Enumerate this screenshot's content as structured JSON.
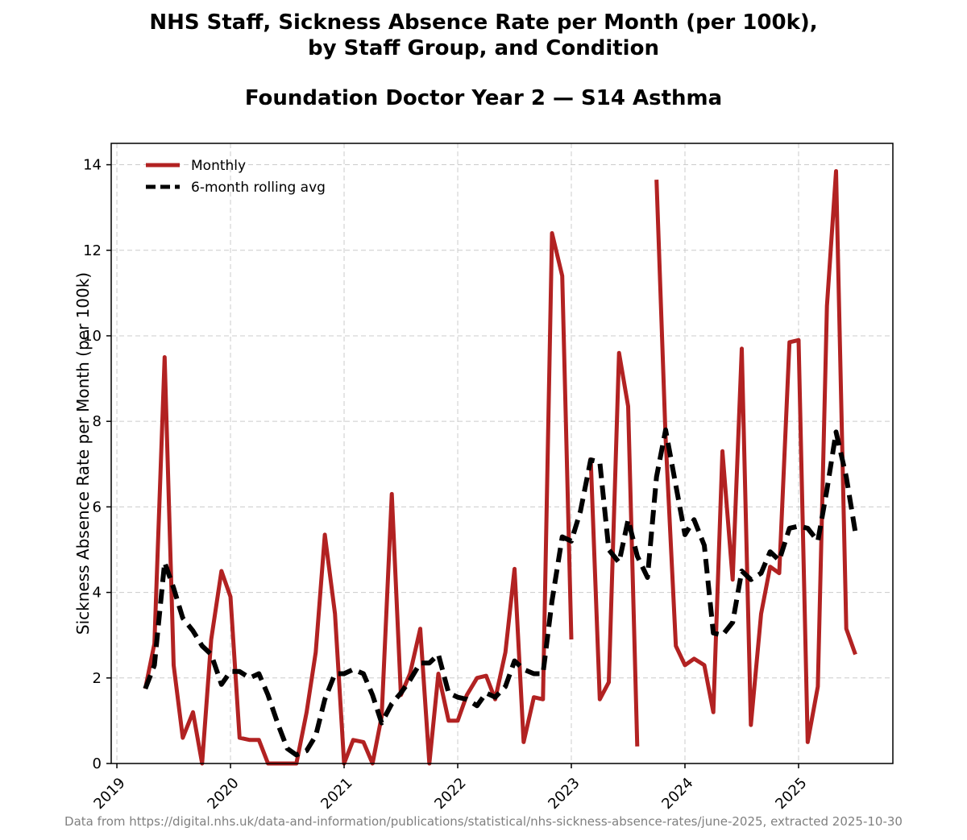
{
  "chart_data": {
    "type": "line",
    "title_line1": "NHS Staff, Sickness Absence Rate per Month (per 100k),",
    "title_line2": "by Staff Group, and Condition",
    "subtitle": "Foundation Doctor Year 2 — S14 Asthma",
    "xlabel": "",
    "ylabel": "Sickness Absence Rate per Month (per 100k)",
    "xlim": [
      2018.95,
      2025.83
    ],
    "ylim": [
      0,
      14.5
    ],
    "x_ticks": [
      2019,
      2020,
      2021,
      2022,
      2023,
      2024,
      2025
    ],
    "x_tick_labels": [
      "2019",
      "2020",
      "2021",
      "2022",
      "2023",
      "2024",
      "2025"
    ],
    "y_ticks": [
      0,
      2,
      4,
      6,
      8,
      10,
      12,
      14
    ],
    "y_tick_labels": [
      "0",
      "2",
      "4",
      "6",
      "8",
      "10",
      "12",
      "14"
    ],
    "grid": true,
    "legend_position": "top-left",
    "series": [
      {
        "name": "Monthly",
        "color": "#b22222",
        "style": "solid",
        "points": [
          [
            2019.25,
            1.75
          ],
          [
            2019.33,
            2.8
          ],
          [
            2019.42,
            9.5
          ],
          [
            2019.5,
            2.3
          ],
          [
            2019.58,
            0.6
          ],
          [
            2019.67,
            1.2
          ],
          [
            2019.75,
            0.0
          ],
          [
            2019.83,
            2.9
          ],
          [
            2019.92,
            4.5
          ],
          [
            2020.0,
            3.9
          ],
          [
            2020.08,
            0.6
          ],
          [
            2020.17,
            0.55
          ],
          [
            2020.25,
            0.55
          ],
          [
            2020.33,
            0.0
          ],
          [
            2020.42,
            0.0
          ],
          [
            2020.5,
            0.0
          ],
          [
            2020.58,
            0.0
          ],
          [
            2020.67,
            1.2
          ],
          [
            2020.75,
            2.6
          ],
          [
            2020.83,
            5.35
          ],
          [
            2020.92,
            3.5
          ],
          [
            2021.0,
            0.0
          ],
          [
            2021.08,
            0.55
          ],
          [
            2021.17,
            0.5
          ],
          [
            2021.25,
            0.0
          ],
          [
            2021.33,
            1.1
          ],
          [
            2021.42,
            6.3
          ],
          [
            2021.5,
            1.6
          ],
          [
            2021.58,
            2.1
          ],
          [
            2021.67,
            3.15
          ],
          [
            2021.75,
            0.0
          ],
          [
            2021.83,
            2.1
          ],
          [
            2021.92,
            1.0
          ],
          [
            2022.0,
            1.0
          ],
          [
            2022.08,
            1.6
          ],
          [
            2022.17,
            2.0
          ],
          [
            2022.25,
            2.05
          ],
          [
            2022.33,
            1.5
          ],
          [
            2022.42,
            2.6
          ],
          [
            2022.5,
            4.55
          ],
          [
            2022.58,
            0.5
          ],
          [
            2022.67,
            1.55
          ],
          [
            2022.75,
            1.5
          ],
          [
            2022.83,
            12.4
          ],
          [
            2022.92,
            11.4
          ],
          [
            2023.0,
            2.9
          ],
          null,
          [
            2023.17,
            7.15
          ],
          [
            2023.25,
            1.5
          ],
          [
            2023.33,
            1.9
          ],
          [
            2023.42,
            9.6
          ],
          [
            2023.5,
            8.35
          ],
          [
            2023.58,
            0.4
          ],
          null,
          [
            2023.75,
            13.65
          ],
          [
            2023.83,
            7.6
          ],
          [
            2023.92,
            2.75
          ],
          [
            2024.0,
            2.3
          ],
          [
            2024.08,
            2.45
          ],
          [
            2024.17,
            2.3
          ],
          [
            2024.25,
            1.2
          ],
          [
            2024.33,
            7.3
          ],
          [
            2024.42,
            4.3
          ],
          [
            2024.5,
            9.7
          ],
          [
            2024.58,
            0.9
          ],
          [
            2024.67,
            3.5
          ],
          [
            2024.75,
            4.6
          ],
          [
            2024.83,
            4.45
          ],
          [
            2024.92,
            9.85
          ],
          [
            2025.0,
            9.9
          ],
          [
            2025.08,
            0.5
          ],
          [
            2025.17,
            1.8
          ],
          [
            2025.25,
            10.7
          ],
          [
            2025.33,
            13.85
          ],
          [
            2025.42,
            3.15
          ],
          [
            2025.5,
            2.55
          ]
        ]
      },
      {
        "name": "6-month rolling avg",
        "color": "#000000",
        "style": "dashed",
        "points": [
          [
            2019.25,
            1.75
          ],
          [
            2019.33,
            2.3
          ],
          [
            2019.42,
            4.7
          ],
          [
            2019.5,
            4.1
          ],
          [
            2019.58,
            3.4
          ],
          [
            2019.67,
            3.1
          ],
          [
            2019.75,
            2.75
          ],
          [
            2019.83,
            2.55
          ],
          [
            2019.92,
            1.85
          ],
          [
            2020.0,
            2.15
          ],
          [
            2020.08,
            2.15
          ],
          [
            2020.17,
            2.0
          ],
          [
            2020.25,
            2.1
          ],
          [
            2020.33,
            1.6
          ],
          [
            2020.42,
            0.9
          ],
          [
            2020.5,
            0.35
          ],
          [
            2020.58,
            0.2
          ],
          [
            2020.67,
            0.3
          ],
          [
            2020.75,
            0.65
          ],
          [
            2020.83,
            1.5
          ],
          [
            2020.92,
            2.1
          ],
          [
            2021.0,
            2.1
          ],
          [
            2021.08,
            2.2
          ],
          [
            2021.17,
            2.1
          ],
          [
            2021.25,
            1.6
          ],
          [
            2021.33,
            0.95
          ],
          [
            2021.42,
            1.4
          ],
          [
            2021.5,
            1.65
          ],
          [
            2021.58,
            1.95
          ],
          [
            2021.67,
            2.35
          ],
          [
            2021.75,
            2.35
          ],
          [
            2021.83,
            2.55
          ],
          [
            2021.92,
            1.65
          ],
          [
            2022.0,
            1.55
          ],
          [
            2022.08,
            1.5
          ],
          [
            2022.17,
            1.35
          ],
          [
            2022.25,
            1.65
          ],
          [
            2022.33,
            1.55
          ],
          [
            2022.42,
            1.8
          ],
          [
            2022.5,
            2.4
          ],
          [
            2022.58,
            2.2
          ],
          [
            2022.67,
            2.1
          ],
          [
            2022.75,
            2.1
          ],
          [
            2022.83,
            3.8
          ],
          [
            2022.92,
            5.3
          ],
          [
            2023.0,
            5.2
          ],
          [
            2023.08,
            5.9
          ],
          [
            2023.17,
            7.1
          ],
          [
            2023.25,
            7.05
          ],
          [
            2023.33,
            5.0
          ],
          [
            2023.42,
            4.7
          ],
          [
            2023.5,
            5.7
          ],
          [
            2023.58,
            4.85
          ],
          [
            2023.67,
            4.35
          ],
          [
            2023.75,
            6.7
          ],
          [
            2023.83,
            7.8
          ],
          [
            2023.92,
            6.5
          ],
          [
            2024.0,
            5.35
          ],
          [
            2024.08,
            5.7
          ],
          [
            2024.17,
            5.1
          ],
          [
            2024.25,
            3.05
          ],
          [
            2024.33,
            3.0
          ],
          [
            2024.42,
            3.3
          ],
          [
            2024.5,
            4.5
          ],
          [
            2024.58,
            4.3
          ],
          [
            2024.67,
            4.45
          ],
          [
            2024.75,
            4.95
          ],
          [
            2024.83,
            4.75
          ],
          [
            2024.92,
            5.5
          ],
          [
            2025.0,
            5.55
          ],
          [
            2025.08,
            5.5
          ],
          [
            2025.17,
            5.2
          ],
          [
            2025.25,
            6.4
          ],
          [
            2025.33,
            7.75
          ],
          [
            2025.42,
            6.7
          ],
          [
            2025.5,
            5.4
          ]
        ]
      }
    ],
    "source_note": "Data from https://digital.nhs.uk/data-and-information/publications/statistical/nhs-sickness-absence-rates/june-2025, extracted 2025-10-30"
  }
}
